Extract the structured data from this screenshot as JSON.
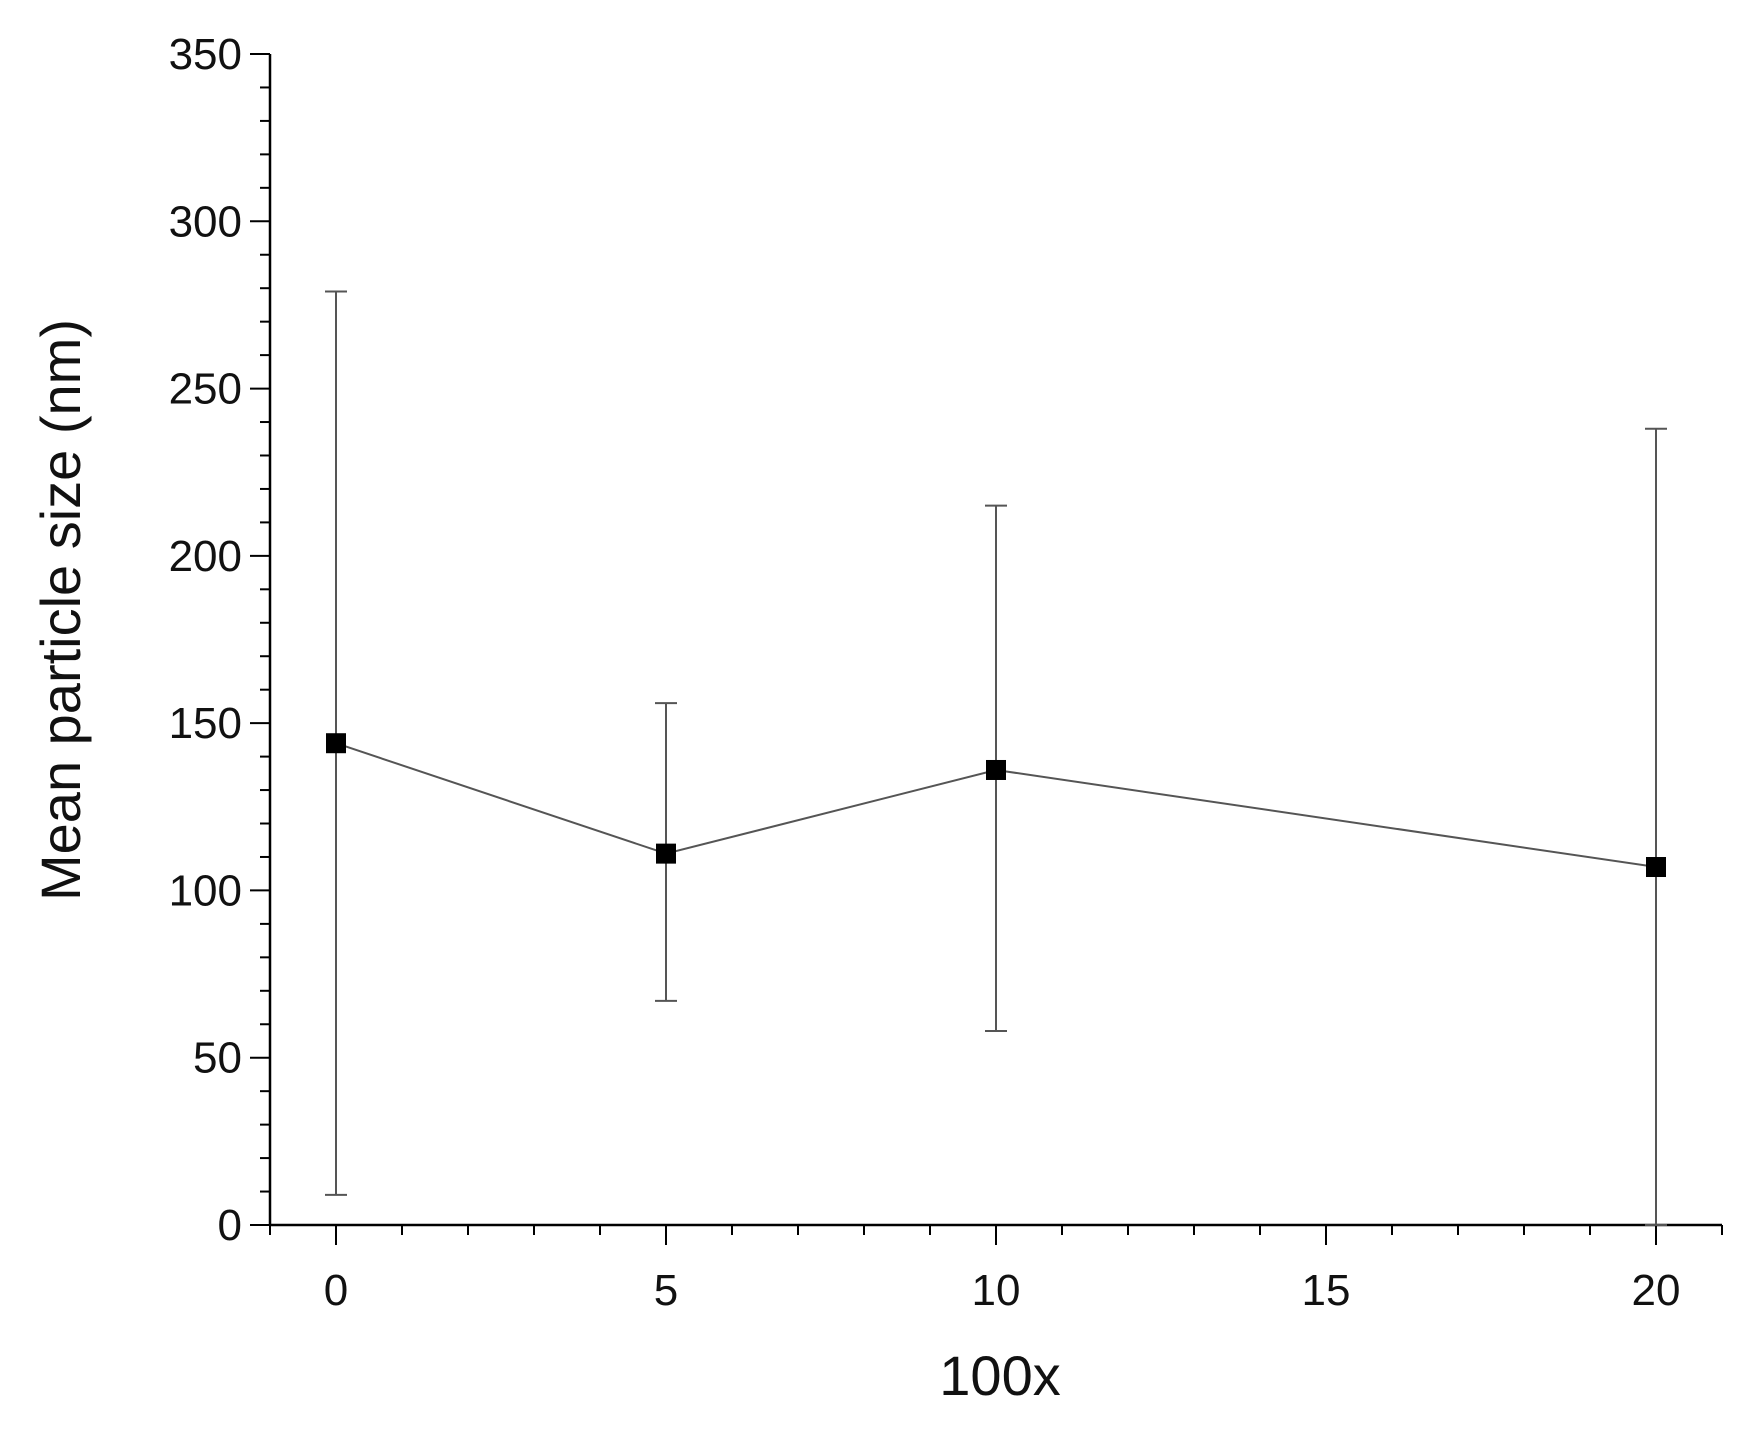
{
  "chart_data": {
    "type": "line",
    "title": "",
    "xlabel": "100x",
    "ylabel": "Mean particle size (nm)",
    "xlim": [
      -1,
      21
    ],
    "ylim": [
      0,
      350
    ],
    "x_ticks": [
      0,
      5,
      10,
      15,
      20
    ],
    "y_ticks": [
      0,
      50,
      100,
      150,
      200,
      250,
      300,
      350
    ],
    "x_minor_step": 1,
    "y_minor_step": 10,
    "grid": false,
    "legend": "none",
    "colors": {
      "marker": "#000000",
      "line": "#555555",
      "error_bar": "#555555"
    },
    "series": [
      {
        "x": [
          0,
          5,
          10,
          20
        ],
        "y": [
          144,
          111,
          136,
          107
        ],
        "err_low": [
          9,
          67,
          58,
          0
        ],
        "err_high": [
          279,
          156,
          215,
          238
        ]
      }
    ]
  }
}
